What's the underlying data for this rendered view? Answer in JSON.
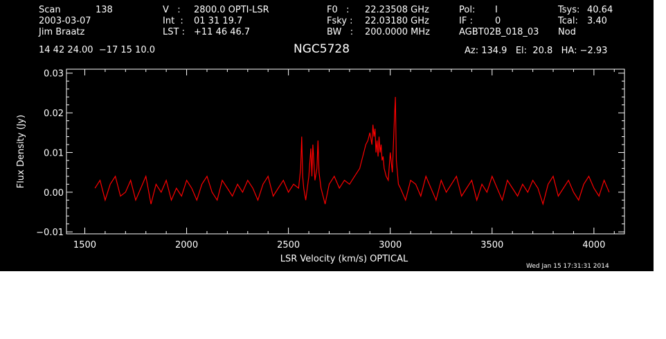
{
  "header": {
    "row1": [
      {
        "label": "Scan",
        "value": "138"
      },
      {
        "label": "V   :",
        "value": "2800.0 OPTI-LSR"
      },
      {
        "label": "F0   :",
        "value": "22.23508 GHz"
      },
      {
        "label": "Pol:",
        "value": "I"
      },
      {
        "label": "Tsys:",
        "value": "40.64"
      }
    ],
    "row2": [
      {
        "value": "2003-03-07"
      },
      {
        "label": "Int  :",
        "value": "01 31 19.7"
      },
      {
        "label": "Fsky :",
        "value": "22.03180 GHz"
      },
      {
        "label": "IF :",
        "value": "0"
      },
      {
        "label": "Tcal:",
        "value": "3.40"
      }
    ],
    "row3": [
      {
        "value": "Jim Braatz"
      },
      {
        "label": "LST :",
        "value": "+11 46 46.7"
      },
      {
        "label": "BW   :",
        "value": "200.0000 MHz"
      },
      {
        "value": "AGBT02B_018_03"
      },
      {
        "value": "Nod"
      }
    ],
    "coords": "14 42 24.00  −17 15 10.0",
    "source": "NGC5728",
    "azel": "Az: 134.9   El:  20.8   HA: −2.93",
    "timestamp": "Wed Jan 15 17:31:31 2014"
  },
  "colors": {
    "background": "#000000",
    "axes": "#ffffff",
    "trace": "#ff0000"
  },
  "chart_data": {
    "type": "line",
    "xlabel": "LSR Velocity (km/s) OPTICAL",
    "ylabel": "Flux Density (Jy)",
    "xlim": [
      1410,
      4150
    ],
    "ylim": [
      -0.0105,
      0.031
    ],
    "xticks": [
      1500,
      2000,
      2500,
      3000,
      3500,
      4000
    ],
    "xtick_labels": [
      "1500",
      "2000",
      "2500",
      "3000",
      "3500",
      "4000"
    ],
    "yticks": [
      -0.01,
      0.0,
      0.01,
      0.02,
      0.03
    ],
    "ytick_labels": [
      "−0.01",
      "0.00",
      "0.01",
      "0.02",
      "0.03"
    ],
    "grid": false,
    "series": [
      {
        "x": [
          1550,
          1575,
          1600,
          1625,
          1650,
          1675,
          1700,
          1725,
          1750,
          1775,
          1800,
          1825,
          1850,
          1875,
          1900,
          1925,
          1950,
          1975,
          2000,
          2025,
          2050,
          2075,
          2100,
          2125,
          2150,
          2175,
          2200,
          2225,
          2250,
          2275,
          2300,
          2325,
          2350,
          2375,
          2400,
          2425,
          2450,
          2475,
          2500,
          2525,
          2550,
          2560,
          2565,
          2570,
          2575,
          2585,
          2600,
          2610,
          2615,
          2620,
          2630,
          2640,
          2645,
          2650,
          2660,
          2680,
          2700,
          2725,
          2750,
          2775,
          2800,
          2825,
          2850,
          2860,
          2870,
          2880,
          2890,
          2900,
          2910,
          2915,
          2920,
          2925,
          2930,
          2935,
          2940,
          2945,
          2950,
          2955,
          2960,
          2965,
          2970,
          2975,
          2980,
          2990,
          3000,
          3010,
          3020,
          3025,
          3030,
          3040,
          3050,
          3075,
          3100,
          3125,
          3150,
          3175,
          3200,
          3225,
          3250,
          3275,
          3300,
          3325,
          3350,
          3375,
          3400,
          3425,
          3450,
          3475,
          3500,
          3525,
          3550,
          3575,
          3600,
          3625,
          3650,
          3675,
          3700,
          3725,
          3750,
          3775,
          3800,
          3825,
          3850,
          3875,
          3900,
          3925,
          3950,
          3975,
          4000,
          4025,
          4050,
          4075
        ],
        "y": [
          0.001,
          0.003,
          -0.002,
          0.002,
          0.004,
          -0.001,
          0.0,
          0.003,
          -0.002,
          0.001,
          0.004,
          -0.003,
          0.002,
          0.0,
          0.003,
          -0.002,
          0.001,
          -0.001,
          0.003,
          0.001,
          -0.002,
          0.002,
          0.004,
          0.0,
          -0.002,
          0.003,
          0.001,
          -0.001,
          0.002,
          0.0,
          0.003,
          0.001,
          -0.002,
          0.002,
          0.004,
          -0.001,
          0.001,
          0.003,
          0.0,
          0.002,
          0.001,
          0.006,
          0.014,
          0.004,
          0.001,
          -0.002,
          0.004,
          0.011,
          0.004,
          0.012,
          0.003,
          0.006,
          0.013,
          0.005,
          0.001,
          -0.003,
          0.002,
          0.004,
          0.001,
          0.003,
          0.002,
          0.004,
          0.006,
          0.008,
          0.01,
          0.012,
          0.013,
          0.015,
          0.012,
          0.017,
          0.014,
          0.016,
          0.01,
          0.013,
          0.009,
          0.014,
          0.01,
          0.012,
          0.008,
          0.009,
          0.006,
          0.005,
          0.004,
          0.003,
          0.01,
          0.005,
          0.018,
          0.024,
          0.008,
          0.002,
          0.001,
          -0.002,
          0.003,
          0.002,
          -0.001,
          0.004,
          0.001,
          -0.002,
          0.003,
          0.0,
          0.002,
          0.004,
          -0.001,
          0.001,
          0.003,
          -0.002,
          0.002,
          0.0,
          0.004,
          0.001,
          -0.002,
          0.003,
          0.001,
          -0.001,
          0.002,
          0.0,
          0.003,
          0.001,
          -0.003,
          0.002,
          0.004,
          -0.001,
          0.001,
          0.003,
          0.0,
          -0.002,
          0.002,
          0.004,
          0.001,
          -0.001,
          0.003,
          0.0
        ]
      }
    ]
  }
}
